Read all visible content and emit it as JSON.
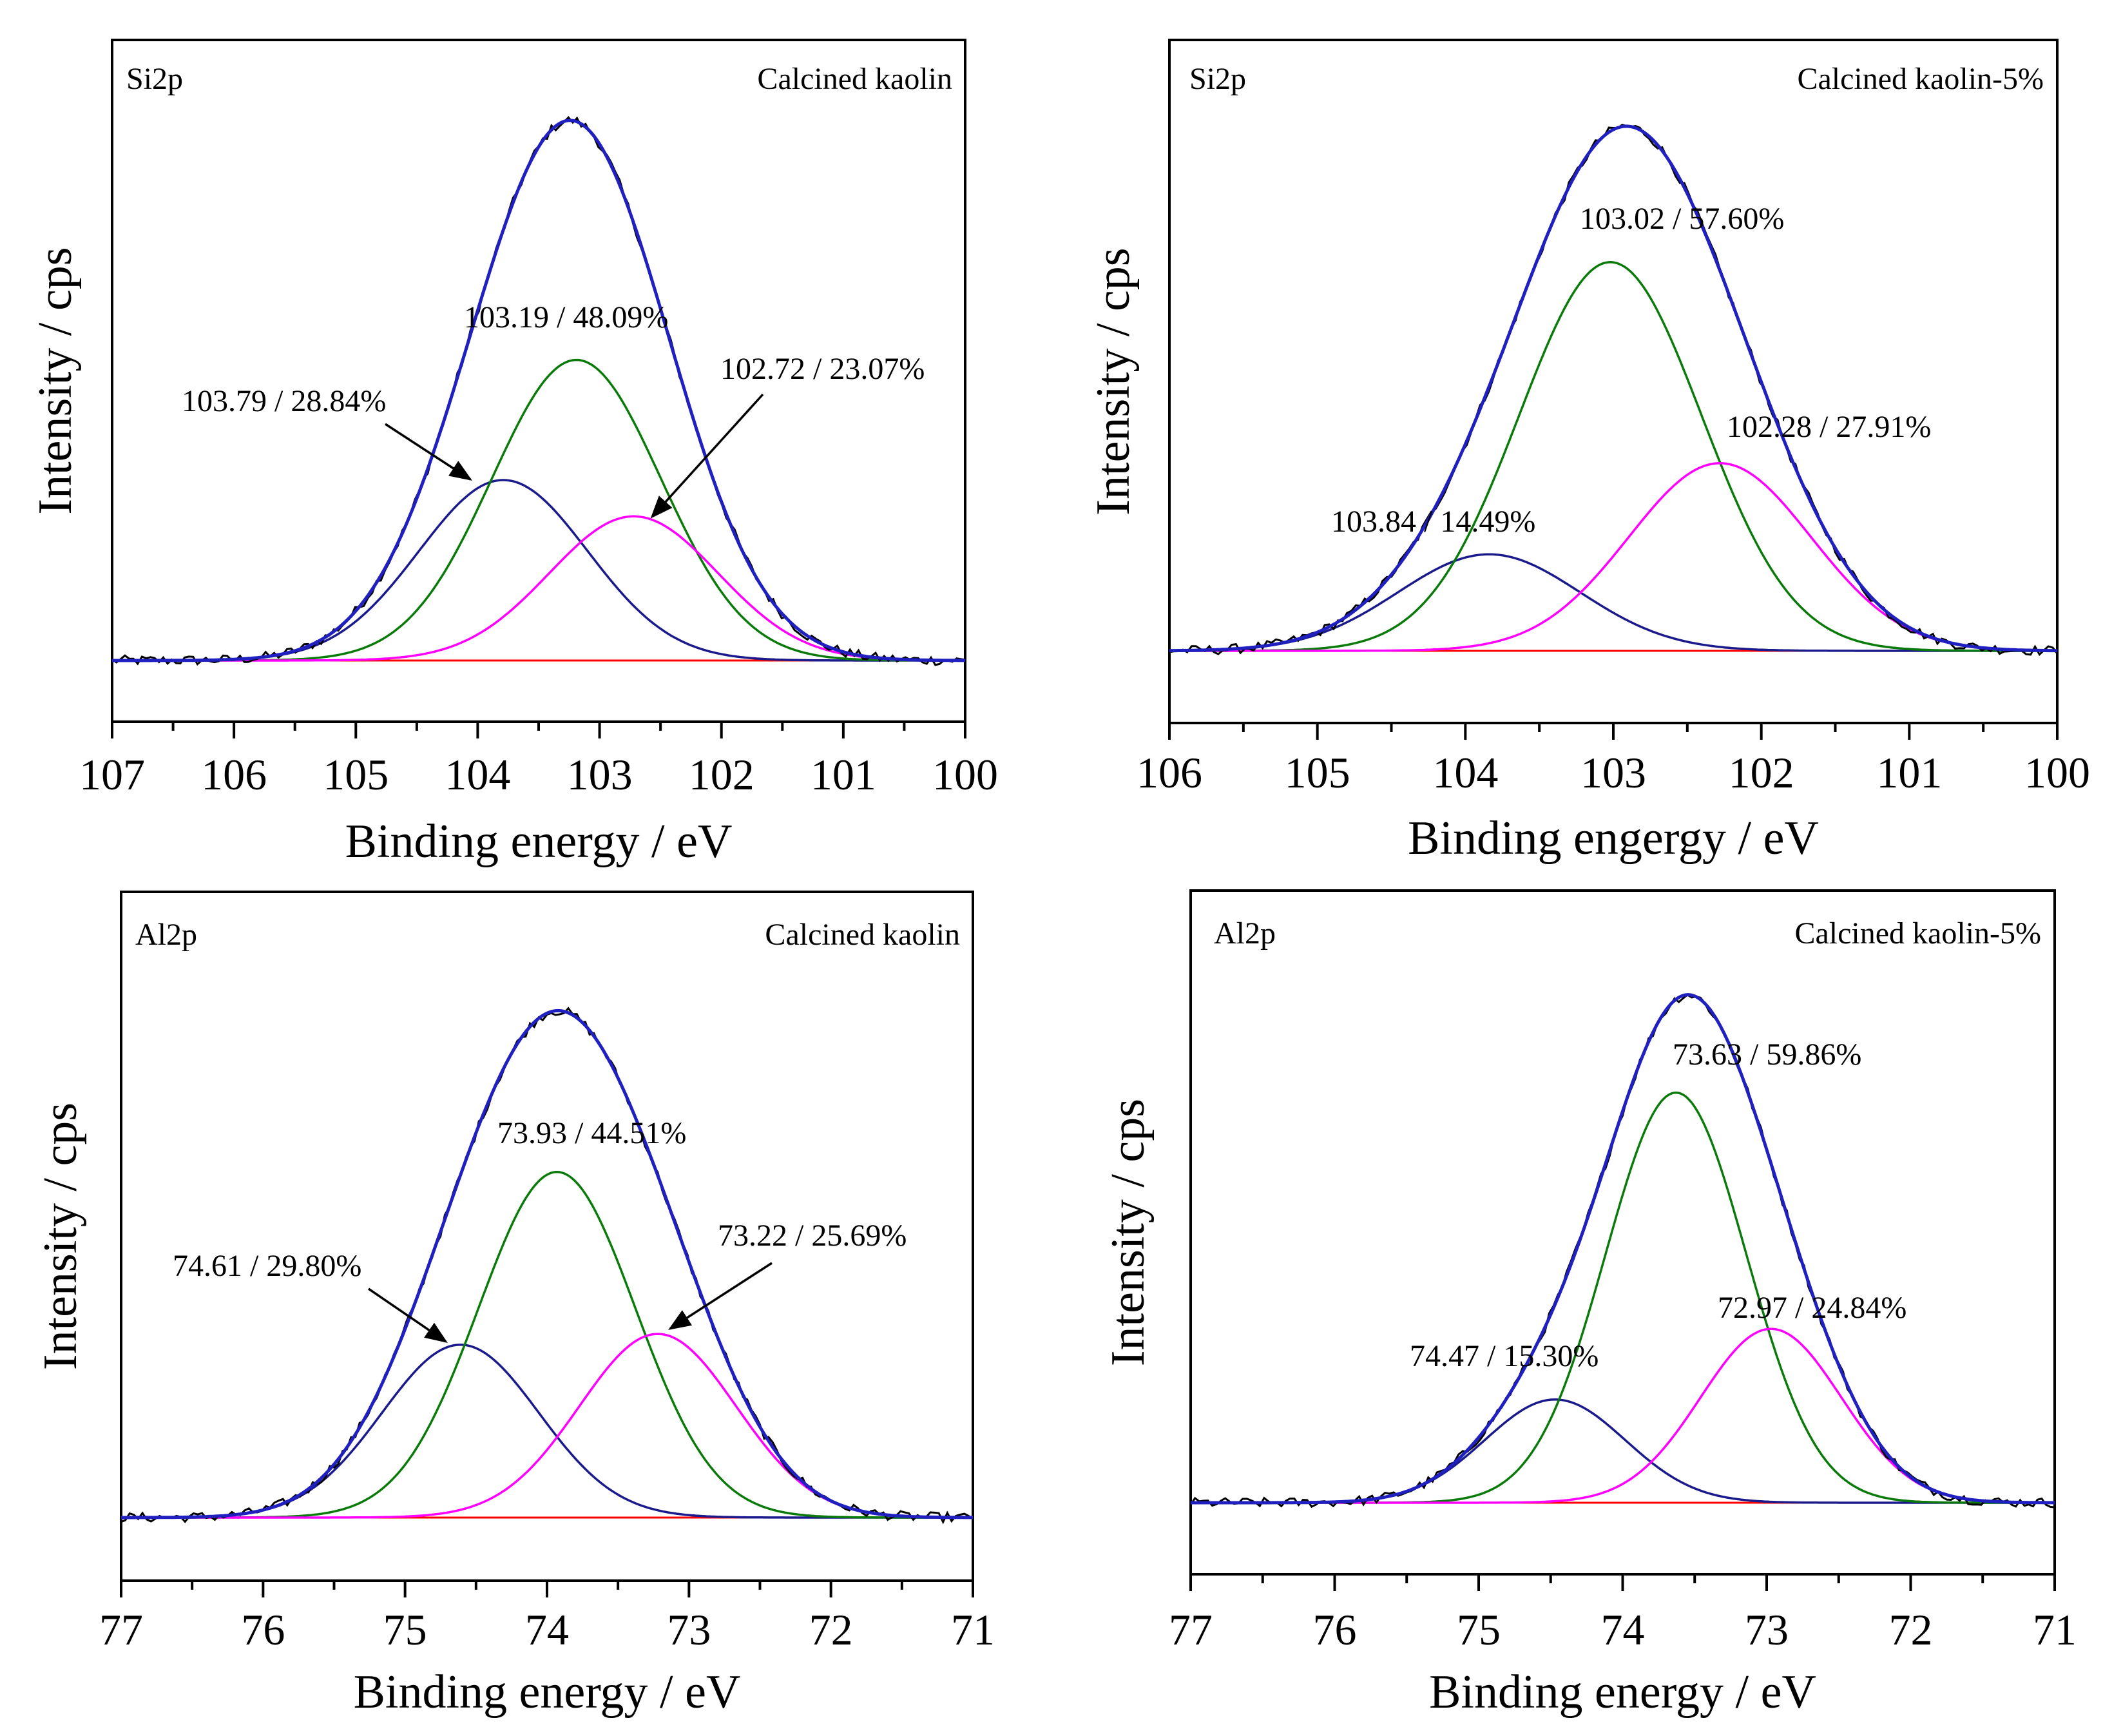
{
  "colors": {
    "background": "#ffffff",
    "axes": "#000000",
    "baseline": "#ff0000",
    "raw": "#000000",
    "envelope": "#2020c0",
    "components": [
      "#1a1a8c",
      "#0a7a0a",
      "#ff00ff"
    ]
  },
  "chart_data": [
    {
      "type": "line",
      "panel": "top-left",
      "element": "Si2p",
      "sample": "Calcined kaolin",
      "xlabel": "Binding energy / eV",
      "ylabel": "Intensity / cps",
      "xlim": [
        107,
        100
      ],
      "xticks": [
        "107",
        "106",
        "105",
        "104",
        "103",
        "102",
        "101",
        "100"
      ],
      "series": [
        {
          "name": "103.79 / 28.84%",
          "center": 103.79,
          "height": 0.323,
          "fwhm": 1.63,
          "color": "#1a1a8c"
        },
        {
          "name": "103.19 / 48.09%",
          "center": 103.19,
          "height": 0.538,
          "fwhm": 1.63,
          "color": "#0a7a0a"
        },
        {
          "name": "102.72 / 23.07%",
          "center": 102.72,
          "height": 0.258,
          "fwhm": 1.63,
          "color": "#ff00ff"
        }
      ],
      "annotations": [
        {
          "text": "103.19 / 48.09%",
          "arrow": false
        },
        {
          "text": "103.79 / 28.84%",
          "arrow": true
        },
        {
          "text": "102.72 / 23.07%",
          "arrow": true
        }
      ]
    },
    {
      "type": "line",
      "panel": "top-right",
      "element": "Si2p",
      "sample": "Calcined kaolin-5%",
      "xlabel": "Binding engergy / eV",
      "ylabel": "Intensity / cps",
      "xlim": [
        106,
        100
      ],
      "xticks": [
        "106",
        "105",
        "104",
        "103",
        "102",
        "101",
        "100"
      ],
      "series": [
        {
          "name": "103.84 / 14.49%",
          "center": 103.84,
          "height": 0.18,
          "fwhm": 1.45,
          "color": "#1a1a8c"
        },
        {
          "name": "103.02 / 57.60%",
          "center": 103.02,
          "height": 0.725,
          "fwhm": 1.45,
          "color": "#0a7a0a"
        },
        {
          "name": "102.28 / 27.91%",
          "center": 102.28,
          "height": 0.35,
          "fwhm": 1.45,
          "color": "#ff00ff"
        }
      ],
      "annotations": [
        {
          "text": "103.02 / 57.60%",
          "arrow": false
        },
        {
          "text": "102.28 / 27.91%",
          "arrow": false
        },
        {
          "text": "103.84 / 14.49%",
          "arrow": false
        }
      ]
    },
    {
      "type": "line",
      "panel": "bottom-left",
      "element": "Al2p",
      "sample": "Calcined kaolin",
      "xlabel": "Binding energy / eV",
      "ylabel": "Intensity / cps",
      "xlim": [
        77,
        71
      ],
      "xticks": [
        "77",
        "76",
        "75",
        "74",
        "73",
        "72",
        "71"
      ],
      "series": [
        {
          "name": "74.61 / 29.80%",
          "center": 74.61,
          "height": 0.32,
          "fwhm": 1.3,
          "color": "#1a1a8c"
        },
        {
          "name": "73.93 / 44.51%",
          "center": 73.93,
          "height": 0.64,
          "fwhm": 1.3,
          "color": "#0a7a0a"
        },
        {
          "name": "73.22 / 25.69%",
          "center": 73.22,
          "height": 0.34,
          "fwhm": 1.3,
          "color": "#ff00ff"
        }
      ],
      "annotations": [
        {
          "text": "73.93 / 44.51%",
          "arrow": false
        },
        {
          "text": "74.61 / 29.80%",
          "arrow": true
        },
        {
          "text": "73.22 / 25.69%",
          "arrow": true
        }
      ]
    },
    {
      "type": "line",
      "panel": "bottom-right",
      "element": "Al2p",
      "sample": "Calcined kaolin-5%",
      "xlabel": "Binding energy / eV",
      "ylabel": "Intensity / cps",
      "xlim": [
        77,
        71
      ],
      "xticks": [
        "77",
        "76",
        "75",
        "74",
        "73",
        "72",
        "71"
      ],
      "series": [
        {
          "name": "74.47 / 15.30%",
          "center": 74.47,
          "height": 0.19,
          "fwhm": 1.15,
          "color": "#1a1a8c"
        },
        {
          "name": "73.63 / 59.86%",
          "center": 73.63,
          "height": 0.755,
          "fwhm": 1.15,
          "color": "#0a7a0a"
        },
        {
          "name": "72.97 / 24.84%",
          "center": 72.97,
          "height": 0.32,
          "fwhm": 1.15,
          "color": "#ff00ff"
        }
      ],
      "annotations": [
        {
          "text": "73.63 / 59.86%",
          "arrow": false
        },
        {
          "text": "72.97 / 24.84%",
          "arrow": false
        },
        {
          "text": "74.47 / 15.30%",
          "arrow": false
        }
      ]
    }
  ]
}
